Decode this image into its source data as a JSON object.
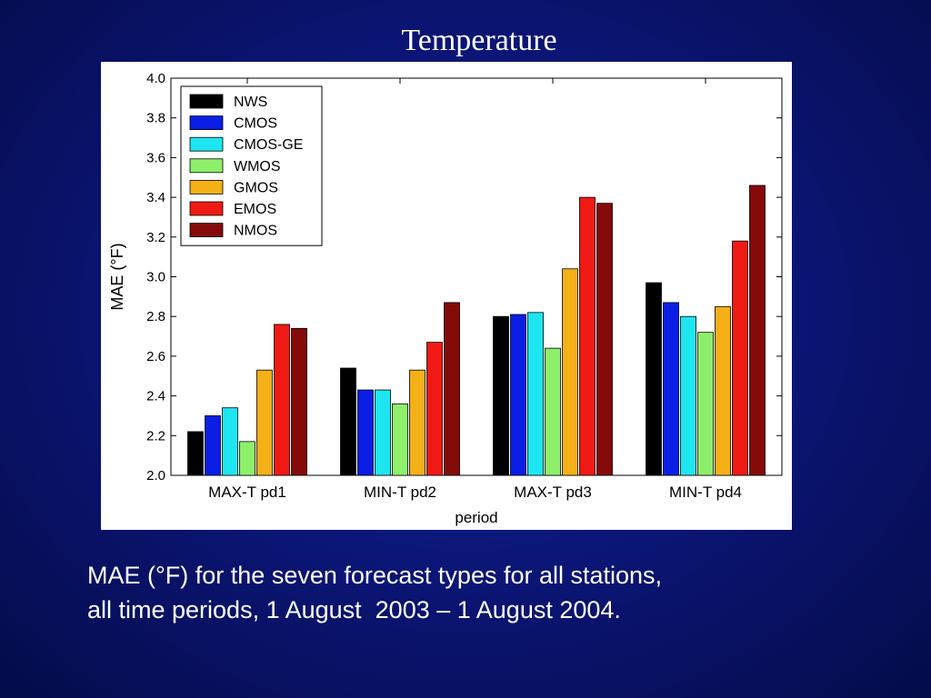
{
  "slide": {
    "title": "Temperature",
    "caption_line1": "MAE (°F) for the seven forecast types for all stations,",
    "caption_line2": "all time periods, 1 August  2003 – 1 August 2004."
  },
  "chart_data": {
    "type": "bar",
    "title": "",
    "xlabel": "period",
    "ylabel": "MAE (°F)",
    "ylim": [
      2.0,
      4.0
    ],
    "yticks": [
      "2.0",
      "2.2",
      "2.4",
      "2.6",
      "2.8",
      "3.0",
      "3.2",
      "3.4",
      "3.6",
      "3.8",
      "4.0"
    ],
    "categories": [
      "MAX-T pd1",
      "MIN-T pd2",
      "MAX-T pd3",
      "MIN-T pd4"
    ],
    "legend_position": "top-left",
    "grid": false,
    "series": [
      {
        "name": "NWS",
        "color": "#000000",
        "values": [
          2.22,
          2.54,
          2.8,
          2.97
        ]
      },
      {
        "name": "CMOS",
        "color": "#0a1ee6",
        "values": [
          2.3,
          2.43,
          2.81,
          2.87
        ]
      },
      {
        "name": "CMOS-GE",
        "color": "#1ee6f0",
        "values": [
          2.34,
          2.43,
          2.82,
          2.8
        ]
      },
      {
        "name": "WMOS",
        "color": "#8ef06a",
        "values": [
          2.17,
          2.36,
          2.64,
          2.72
        ]
      },
      {
        "name": "GMOS",
        "color": "#f5b018",
        "values": [
          2.53,
          2.53,
          3.04,
          2.85
        ]
      },
      {
        "name": "EMOS",
        "color": "#f01a14",
        "values": [
          2.76,
          2.67,
          3.4,
          3.18
        ]
      },
      {
        "name": "NMOS",
        "color": "#850a0a",
        "values": [
          2.74,
          2.87,
          3.37,
          3.46
        ]
      }
    ]
  }
}
